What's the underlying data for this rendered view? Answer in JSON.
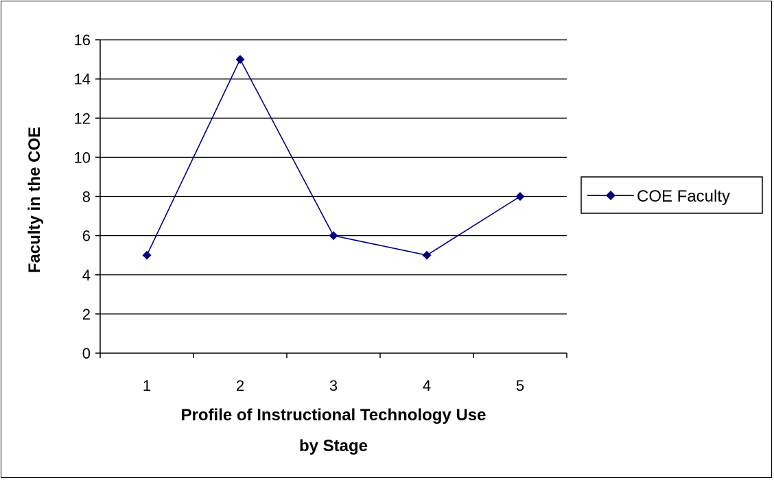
{
  "chart_data": {
    "type": "line",
    "categories": [
      "1",
      "2",
      "3",
      "4",
      "5"
    ],
    "series": [
      {
        "name": "COE Faculty",
        "values": [
          5,
          15,
          6,
          5,
          8
        ],
        "color": "#000080"
      }
    ],
    "xlabel_lines": [
      "Profile of Instructional Technology Use",
      "by Stage"
    ],
    "ylabel": "Faculty in the COE",
    "ylim": [
      0,
      16
    ],
    "yticks": [
      "0",
      "2",
      "4",
      "6",
      "8",
      "10",
      "12",
      "14",
      "16"
    ],
    "grid": true,
    "legend_position": "right"
  }
}
